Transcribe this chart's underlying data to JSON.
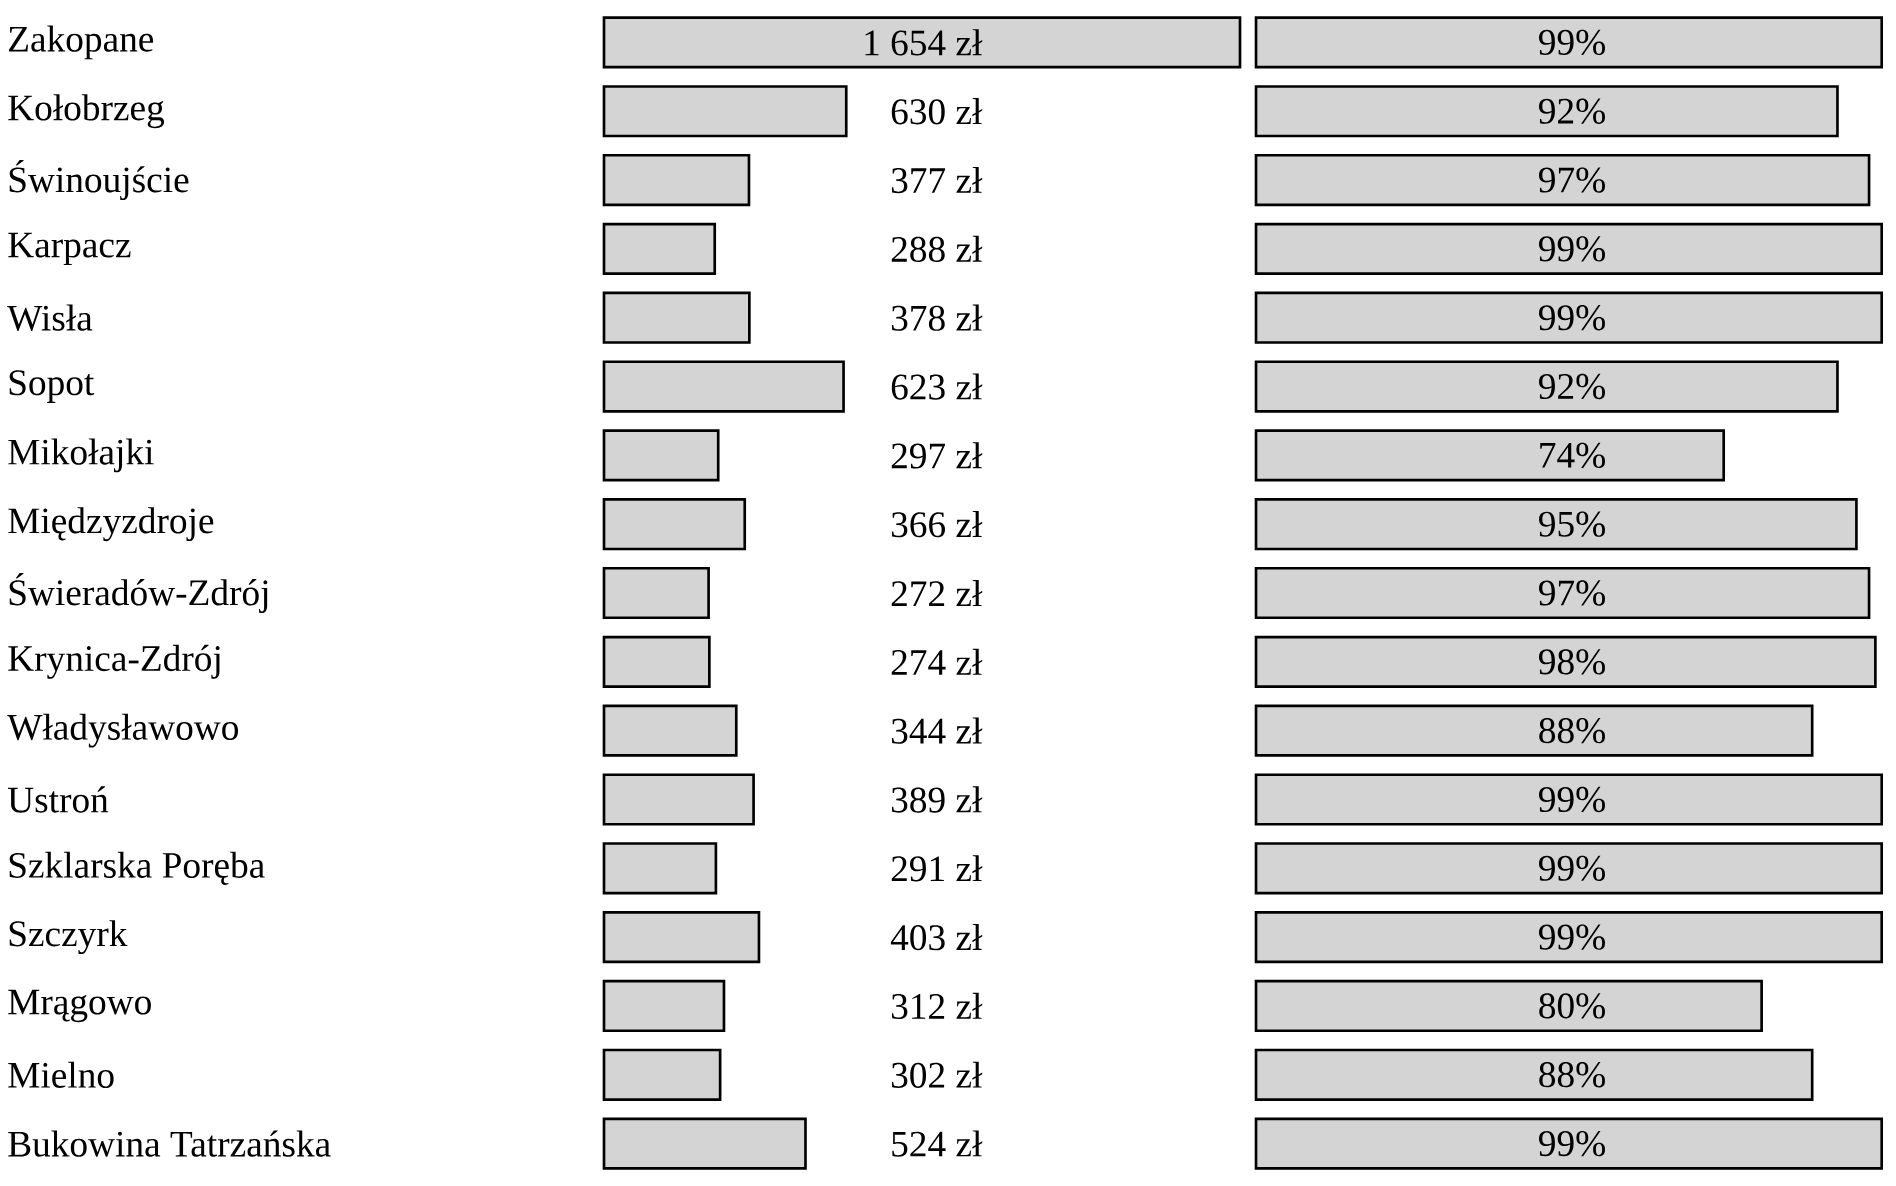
{
  "chart_data": [
    {
      "type": "bar",
      "orientation": "horizontal",
      "tick_labels": "y",
      "color": "#d4d4d4",
      "xlim": [
        0,
        1654
      ],
      "categories": [
        "Zakopane",
        "Kołobrzeg",
        "Świnoujście",
        "Karpacz",
        "Wisła",
        "Sopot",
        "Mikołajki",
        "Międzyzdroje",
        "Świeradów-Zdrój",
        "Krynica-Zdrój",
        "Władysławowo",
        "Ustroń",
        "Szklarska Poręba",
        "Szczyrk",
        "Mrągowo",
        "Mielno",
        "Bukowina Tatrzańska"
      ],
      "values": [
        1654,
        630,
        377,
        288,
        378,
        623,
        297,
        366,
        272,
        274,
        344,
        389,
        291,
        403,
        312,
        302,
        524
      ],
      "value_labels": [
        "1 654 zł",
        "630 zł",
        "377 zł",
        "288 zł",
        "378 zł",
        "623 zł",
        "297 zł",
        "366 zł",
        "272 zł",
        "274 zł",
        "344 zł",
        "389 zł",
        "291 zł",
        "403 zł",
        "312 zł",
        "302 zł",
        "524 zł"
      ]
    },
    {
      "type": "bar",
      "orientation": "horizontal",
      "tick_labels": false,
      "color": "#d4d4d4",
      "xlim": [
        0,
        100
      ],
      "values": [
        99,
        92,
        97,
        99,
        99,
        92,
        74,
        95,
        97,
        98,
        88,
        99,
        99,
        99,
        80,
        88,
        99
      ],
      "value_labels": [
        "99%",
        "92%",
        "97%",
        "99%",
        "99%",
        "92%",
        "74%",
        "95%",
        "97%",
        "98%",
        "88%",
        "99%",
        "99%",
        "99%",
        "80%",
        "88%",
        "99%"
      ]
    }
  ]
}
